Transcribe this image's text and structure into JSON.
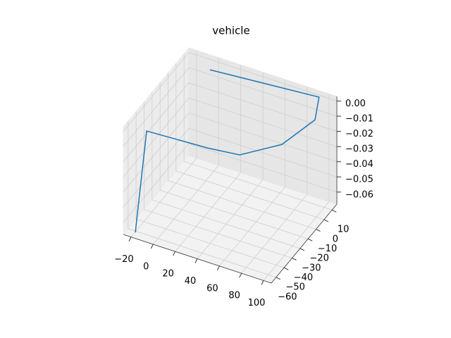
{
  "chart_data": {
    "type": "line",
    "title": "vehicle",
    "series": [
      {
        "x": [
          -17,
          -10.6,
          43,
          69.7,
          93.6,
          102.6,
          92,
          -1.7
        ],
        "y": [
          -64.8,
          -59.5,
          -57,
          -54.1,
          -34.2,
          -5.2,
          14.4,
          7.5
        ],
        "z": [
          -0.065,
          0,
          0,
          0,
          0,
          0,
          0,
          0
        ],
        "color": "#1f77b4"
      }
    ],
    "xlim": [
      -27,
      107
    ],
    "ylim": [
      -66,
      16
    ],
    "zlim": [
      -0.068,
      0.003
    ],
    "xticks": [
      {
        "value": -20,
        "label": "−20"
      },
      0,
      20,
      40,
      60,
      80,
      100
    ],
    "yticks": [
      {
        "value": -60,
        "label": "−60"
      },
      {
        "value": -50,
        "label": "−50"
      },
      {
        "value": -40,
        "label": "−40"
      },
      {
        "value": -30,
        "label": "−30"
      },
      {
        "value": -20,
        "label": "−20"
      },
      {
        "value": -10,
        "label": "−10"
      },
      0,
      10
    ],
    "zticks": [
      {
        "value": -0.06,
        "label": "−0.06"
      },
      {
        "value": -0.05,
        "label": "−0.05"
      },
      {
        "value": -0.04,
        "label": "−0.04"
      },
      {
        "value": -0.03,
        "label": "−0.03"
      },
      {
        "value": -0.02,
        "label": "−0.02"
      },
      {
        "value": -0.01,
        "label": "−0.01"
      },
      {
        "value": 0,
        "label": "0.00"
      }
    ],
    "grid": true
  }
}
